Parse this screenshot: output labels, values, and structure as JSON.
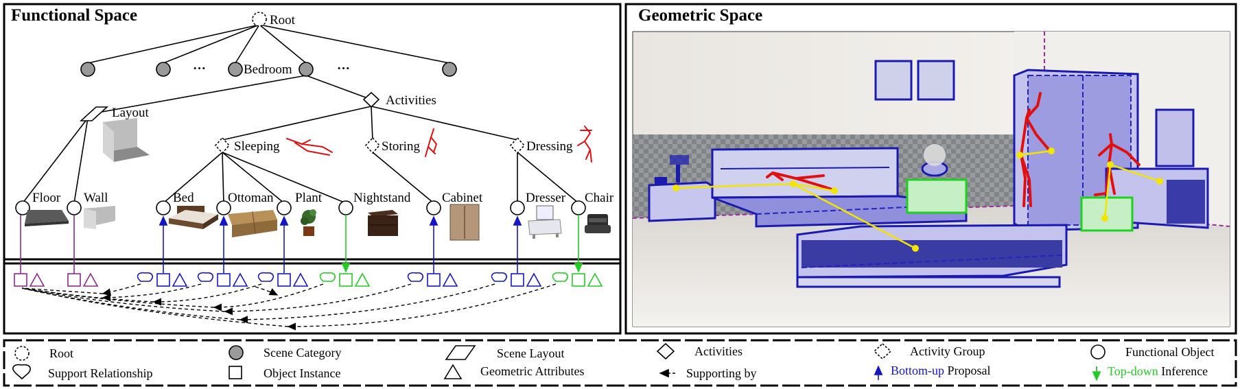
{
  "panels": {
    "functional_title": "Functional Space",
    "geometric_title": "Geometric Space"
  },
  "tree": {
    "root": "Root",
    "ellipsis": "···",
    "bedroom": "Bedroom",
    "layout": "Layout",
    "activities": "Activities",
    "groups": [
      "Sleeping",
      "Storing",
      "Dressing"
    ],
    "objects": [
      "Floor",
      "Wall",
      "Bed",
      "Ottoman",
      "Plant",
      "Nightstand",
      "Cabinet",
      "Dresser",
      "Chair"
    ]
  },
  "legend": {
    "root": "Root",
    "scene_category": "Scene Category",
    "scene_layout": "Scene Layout",
    "activities": "Activities",
    "activity_group": "Activity Group",
    "functional_object": "Functional Object",
    "support_relationship": "Support Relationship",
    "object_instance": "Object Instance",
    "geometric_attributes": "Geometric Attributes",
    "supporting_by": "Supporting by",
    "bottom_up_word": "Bottom-up",
    "bottom_up_rest": " Proposal",
    "top_down_word": "Top-down",
    "top_down_rest": " Inference"
  },
  "colors": {
    "layout_purple": "#8b2a8b",
    "bottom_up_blue": "#1515c8",
    "top_down_green": "#22cc22",
    "skeleton_red": "#e01010",
    "joint_yellow": "#f2e600",
    "node_gray": "#9a9a9a"
  }
}
